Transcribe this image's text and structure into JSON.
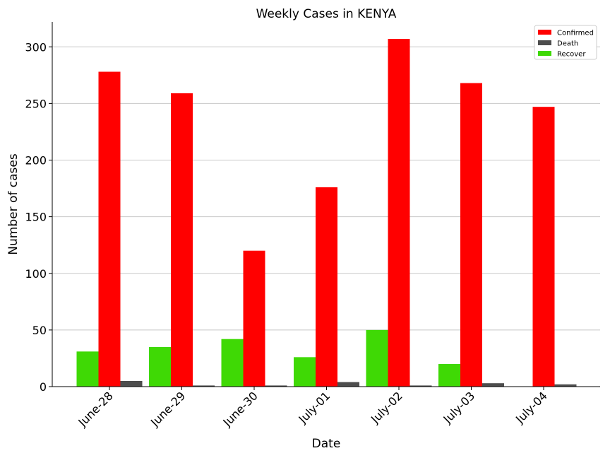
{
  "chart_data": {
    "type": "bar",
    "title": "Weekly Cases in KENYA",
    "xlabel": "Date",
    "ylabel": "Number of cases",
    "categories": [
      "June-28",
      "June-29",
      "June-30",
      "July-01",
      "July-02",
      "July-03",
      "July-04"
    ],
    "series": [
      {
        "name": "Recover",
        "color": "#3fd905",
        "values": [
          31,
          35,
          42,
          26,
          50,
          20,
          0
        ]
      },
      {
        "name": "Confirmed",
        "color": "#ff0000",
        "values": [
          278,
          259,
          120,
          176,
          307,
          268,
          247
        ]
      },
      {
        "name": "Death",
        "color": "#4d4d4d",
        "values": [
          5,
          1,
          1,
          4,
          1,
          3,
          2
        ]
      }
    ],
    "legend_order": [
      "Confirmed",
      "Death",
      "Recover"
    ],
    "ylim": [
      0,
      322
    ],
    "yticks": [
      0,
      50,
      100,
      150,
      200,
      250,
      300
    ],
    "grid": "horizontal",
    "legend_position": "top-right",
    "x_tick_rotation": 45
  }
}
